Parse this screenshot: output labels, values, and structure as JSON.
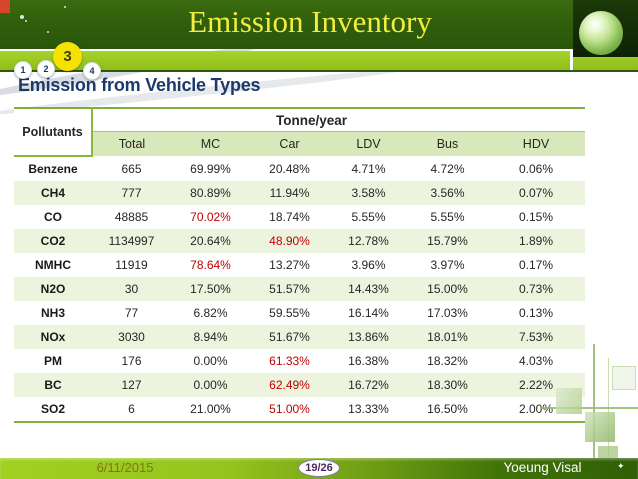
{
  "slide_title": {
    "text": "Emission Inventory"
  },
  "nav": {
    "active_index": 2,
    "items": [
      {
        "label": "1"
      },
      {
        "label": "2"
      },
      {
        "label": "3"
      },
      {
        "label": "4"
      }
    ]
  },
  "section": {
    "title": "Emission from Vehicle Types"
  },
  "table": {
    "type": "table",
    "corner_header": "Pollutants",
    "group_header": "Tonne/year",
    "columns": [
      "Total",
      "MC",
      "Car",
      "LDV",
      "Bus",
      "HDV"
    ],
    "rows": [
      {
        "pollutant": "Benzene",
        "values": [
          "665",
          "69.99%",
          "20.48%",
          "4.71%",
          "4.72%",
          "0.06%"
        ],
        "red_value_indices": []
      },
      {
        "pollutant": "CH4",
        "values": [
          "777",
          "80.89%",
          "11.94%",
          "3.58%",
          "3.56%",
          "0.07%"
        ],
        "red_value_indices": []
      },
      {
        "pollutant": "CO",
        "values": [
          "48885",
          "70.02%",
          "18.74%",
          "5.55%",
          "5.55%",
          "0.15%"
        ],
        "red_value_indices": [
          1
        ]
      },
      {
        "pollutant": "CO2",
        "values": [
          "1134997",
          "20.64%",
          "48.90%",
          "12.78%",
          "15.79%",
          "1.89%"
        ],
        "red_value_indices": [
          2
        ]
      },
      {
        "pollutant": "NMHC",
        "values": [
          "11919",
          "78.64%",
          "13.27%",
          "3.96%",
          "3.97%",
          "0.17%"
        ],
        "red_value_indices": [
          1
        ]
      },
      {
        "pollutant": "N2O",
        "values": [
          "30",
          "17.50%",
          "51.57%",
          "14.43%",
          "15.00%",
          "0.73%"
        ],
        "red_value_indices": []
      },
      {
        "pollutant": "NH3",
        "values": [
          "77",
          "6.82%",
          "59.55%",
          "16.14%",
          "17.03%",
          "0.13%"
        ],
        "red_value_indices": []
      },
      {
        "pollutant": "NOx",
        "values": [
          "3030",
          "8.94%",
          "51.67%",
          "13.86%",
          "18.01%",
          "7.53%"
        ],
        "red_value_indices": []
      },
      {
        "pollutant": "PM",
        "values": [
          "176",
          "0.00%",
          "61.33%",
          "16.38%",
          "18.32%",
          "4.03%"
        ],
        "red_value_indices": [
          2
        ]
      },
      {
        "pollutant": "BC",
        "values": [
          "127",
          "0.00%",
          "62.49%",
          "16.72%",
          "18.30%",
          "2.22%"
        ],
        "red_value_indices": [
          2
        ]
      },
      {
        "pollutant": "SO2",
        "values": [
          "6",
          "21.00%",
          "51.00%",
          "13.33%",
          "16.50%",
          "2.00%"
        ],
        "red_value_indices": [
          2
        ]
      }
    ]
  },
  "footer": {
    "date": "6/11/2015",
    "page": "19/26",
    "author": "Yoeung Visal"
  },
  "icons": {
    "sparkle": "✦"
  },
  "colors": {
    "header_green": "#2f5d0c",
    "band_green": "#97c121",
    "table_border_green": "#7fae3a",
    "header_row_green": "#d9e8ba",
    "alt_row_green": "#ecf4de",
    "highlight_red": "#c00000",
    "title_yellow": "#f2ee3f",
    "section_navy": "#1b3a6b",
    "active_nav_yellow": "#f6e103",
    "corner_square_red": "#d8452a"
  }
}
